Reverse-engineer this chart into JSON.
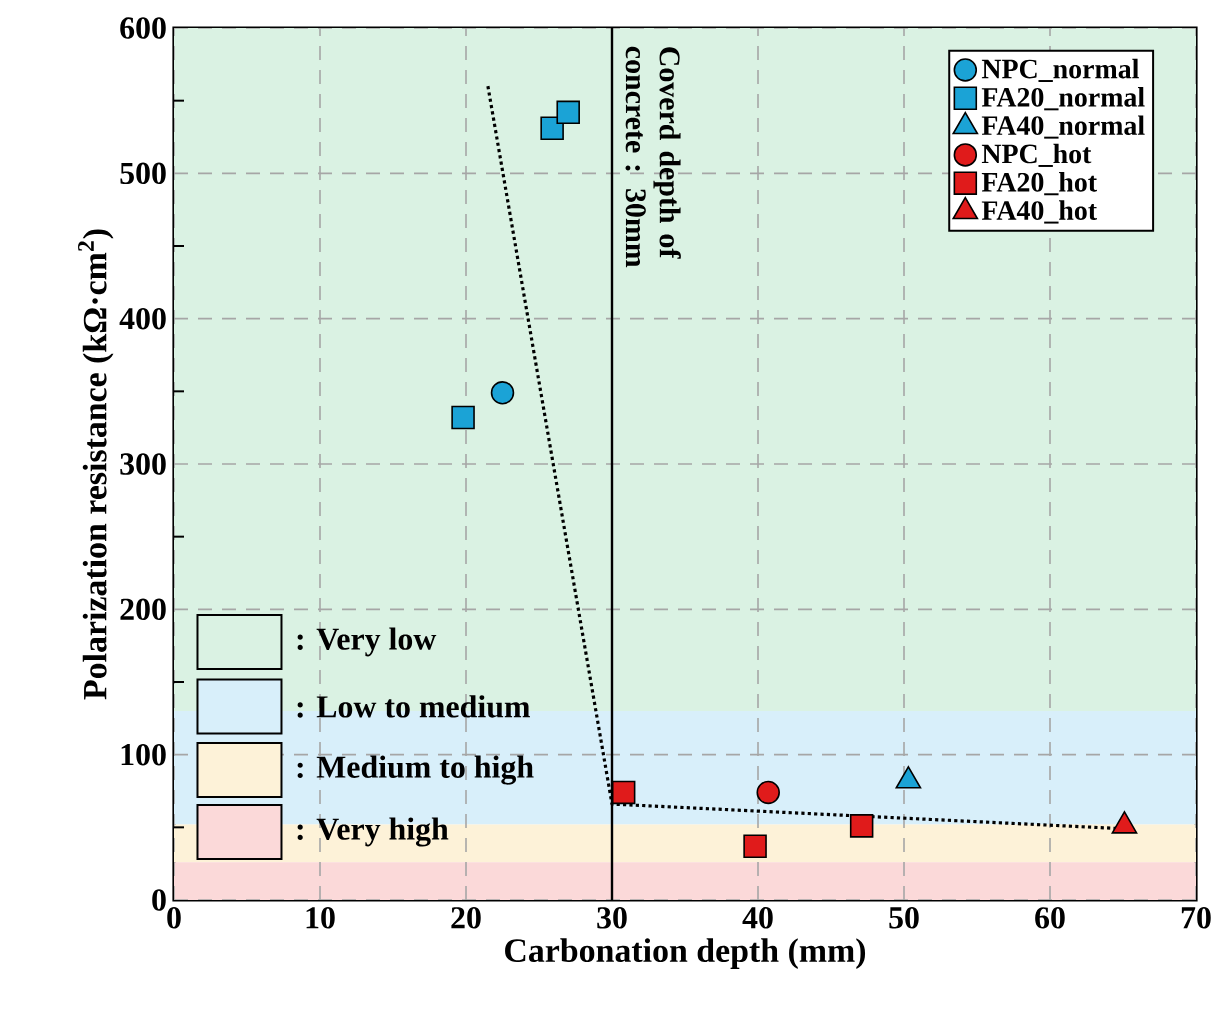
{
  "chart_data": {
    "type": "scatter",
    "xlabel": "Carbonation depth (mm)",
    "ylabel": "Polarization resistance (kΩ·cm$^{2}$)",
    "xlim": [
      0,
      70
    ],
    "ylim": [
      0,
      600
    ],
    "xticks": [
      0,
      10,
      20,
      30,
      40,
      50,
      60,
      70
    ],
    "yticks": [
      0,
      {
        "value": 50,
        "label": null
      },
      100,
      {
        "value": 150,
        "label": null
      },
      200,
      {
        "value": 250,
        "label": null
      },
      300,
      {
        "value": 350,
        "label": null
      },
      400,
      {
        "value": 450,
        "label": null
      },
      500,
      {
        "value": 550,
        "label": null
      },
      600
    ],
    "grid": true,
    "legend": "top right",
    "series": [
      {
        "name": "NPC_normal",
        "color": "#1ba3d6",
        "marker": "circle",
        "x": [
          22.5
        ],
        "values": [
          349
        ]
      },
      {
        "name": "FA20_normal",
        "color": "#1ba3d6",
        "marker": "square",
        "x": [
          19.8,
          25.9,
          27.0
        ],
        "values": [
          332,
          531,
          542
        ]
      },
      {
        "name": "FA40_normal",
        "color": "#1ba3d6",
        "marker": "triangle",
        "x": [
          50.3
        ],
        "values": [
          82
        ]
      },
      {
        "name": "NPC_hot",
        "color": "#e01b1b",
        "marker": "circle",
        "x": [
          40.7
        ],
        "values": [
          74
        ]
      },
      {
        "name": "FA20_hot",
        "color": "#e01b1b",
        "marker": "square",
        "x": [
          30.8,
          39.8,
          47.1
        ],
        "values": [
          74,
          37,
          51
        ]
      },
      {
        "name": "FA40_hot",
        "color": "#e01b1b",
        "marker": "triangle",
        "x": [
          65.1
        ],
        "values": [
          51
        ]
      },
      {
        "type": "line",
        "color": "#000000",
        "line_style": "dotted",
        "marker": "none",
        "x": [
          21.5,
          30,
          65.1
        ],
        "values": [
          560,
          66,
          49
        ]
      }
    ],
    "ref_lines": [
      {
        "axis": "x",
        "value": 30,
        "label": "Coverd depth of concrete : 30mm",
        "color": "#000000"
      }
    ],
    "bands": [
      {
        "axis": "y",
        "from": 130,
        "to": 600,
        "label": ": Very low",
        "color": "#daf2e3"
      },
      {
        "axis": "y",
        "from": 52,
        "to": 130,
        "label": ": Low to medium",
        "color": "#d8effa"
      },
      {
        "axis": "y",
        "from": 26,
        "to": 52,
        "label": ": Medium to high",
        "color": "#fdf2d8"
      },
      {
        "axis": "y",
        "from": 0,
        "to": 26,
        "label": ": Very high",
        "color": "#fbd9d9"
      }
    ]
  }
}
